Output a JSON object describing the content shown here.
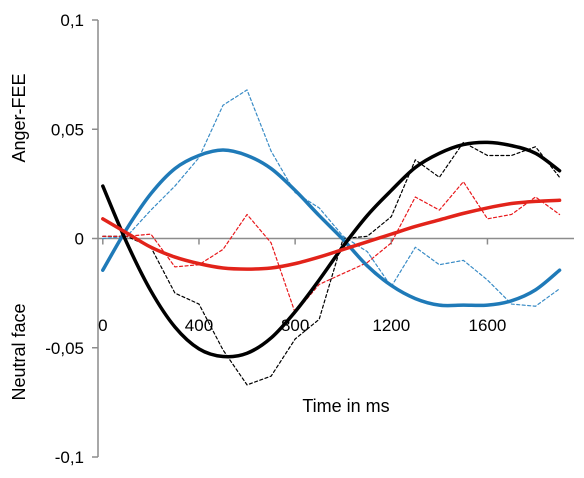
{
  "chart_data": {
    "type": "line",
    "title": "",
    "xlabel": "Time in ms",
    "ylabel_top": "Anger-FEE",
    "ylabel_bottom": "Neutral face",
    "xlim": [
      -20,
      1960
    ],
    "ylim": [
      -0.1,
      0.1
    ],
    "x_ticks": [
      0,
      400,
      800,
      1200,
      1600
    ],
    "x_tick_labels": [
      "0",
      "400",
      "800",
      "1200",
      "1600"
    ],
    "y_ticks": [
      0.1,
      0.05,
      0,
      -0.05,
      -0.1
    ],
    "y_tick_labels": [
      "0,1",
      "0,05",
      "0",
      "-0,05",
      "-0,1"
    ],
    "grid": false,
    "legend": "none",
    "series": [
      {
        "color": "#3a8cc6",
        "style": "dashed",
        "x": [
          0,
          100,
          200,
          300,
          400,
          500,
          600,
          700,
          800,
          900,
          1000,
          1100,
          1200,
          1300,
          1400,
          1500,
          1600,
          1700,
          1800,
          1900
        ],
        "y": [
          0.0,
          0.001,
          0.013,
          0.024,
          0.037,
          0.061,
          0.068,
          0.04,
          0.021,
          0.014,
          0.001,
          -0.006,
          -0.022,
          -0.004,
          -0.012,
          -0.01,
          -0.019,
          -0.03,
          -0.031,
          -0.023
        ]
      },
      {
        "color": "#000000",
        "style": "dashed",
        "x": [
          0,
          100,
          200,
          300,
          400,
          500,
          600,
          700,
          800,
          900,
          1000,
          1100,
          1200,
          1300,
          1400,
          1500,
          1600,
          1700,
          1800,
          1900
        ],
        "y": [
          0.001,
          0.001,
          -0.004,
          -0.025,
          -0.03,
          -0.051,
          -0.067,
          -0.063,
          -0.046,
          -0.037,
          0.0,
          0.001,
          0.01,
          0.036,
          0.028,
          0.044,
          0.038,
          0.038,
          0.042,
          0.028
        ]
      },
      {
        "color": "#e8191c",
        "style": "dashed",
        "x": [
          0,
          100,
          200,
          300,
          400,
          500,
          600,
          700,
          800,
          900,
          1000,
          1100,
          1200,
          1300,
          1400,
          1500,
          1600,
          1700,
          1800,
          1900
        ],
        "y": [
          0.001,
          0.001,
          0.002,
          -0.013,
          -0.012,
          -0.005,
          0.011,
          -0.002,
          -0.034,
          -0.021,
          -0.016,
          -0.011,
          -0.002,
          0.019,
          0.013,
          0.026,
          0.009,
          0.011,
          0.019,
          0.011
        ]
      },
      {
        "color": "#1f7ab8",
        "style": "solid",
        "x": [
          0,
          100,
          200,
          300,
          400,
          500,
          600,
          700,
          800,
          900,
          1000,
          1100,
          1200,
          1300,
          1400,
          1500,
          1600,
          1700,
          1800,
          1900
        ],
        "y": [
          -0.0145,
          0.0045,
          0.0205,
          0.032,
          0.038,
          0.0405,
          0.038,
          0.032,
          0.022,
          0.0105,
          -0.0005,
          -0.0125,
          -0.0215,
          -0.0275,
          -0.0305,
          -0.0305,
          -0.0305,
          -0.0285,
          -0.0235,
          -0.0145
        ]
      },
      {
        "color": "#000000",
        "style": "solid",
        "x": [
          0,
          100,
          200,
          300,
          400,
          500,
          600,
          700,
          800,
          900,
          1000,
          1100,
          1200,
          1300,
          1400,
          1500,
          1600,
          1700,
          1800,
          1900
        ],
        "y": [
          0.024,
          -0.002,
          -0.024,
          -0.0405,
          -0.0505,
          -0.054,
          -0.0525,
          -0.0455,
          -0.0335,
          -0.019,
          -0.0035,
          0.0105,
          0.022,
          0.0325,
          0.039,
          0.043,
          0.044,
          0.0425,
          0.039,
          0.031
        ]
      },
      {
        "color": "#e2231a",
        "style": "solid",
        "x": [
          0,
          100,
          200,
          300,
          400,
          500,
          600,
          700,
          800,
          900,
          1000,
          1100,
          1200,
          1300,
          1400,
          1500,
          1600,
          1700,
          1800,
          1900
        ],
        "y": [
          0.009,
          0.0025,
          -0.004,
          -0.0085,
          -0.0115,
          -0.0135,
          -0.014,
          -0.0135,
          -0.0115,
          -0.0085,
          -0.005,
          -0.0015,
          0.002,
          0.0055,
          0.0085,
          0.0115,
          0.014,
          0.016,
          0.017,
          0.0175
        ]
      }
    ]
  }
}
